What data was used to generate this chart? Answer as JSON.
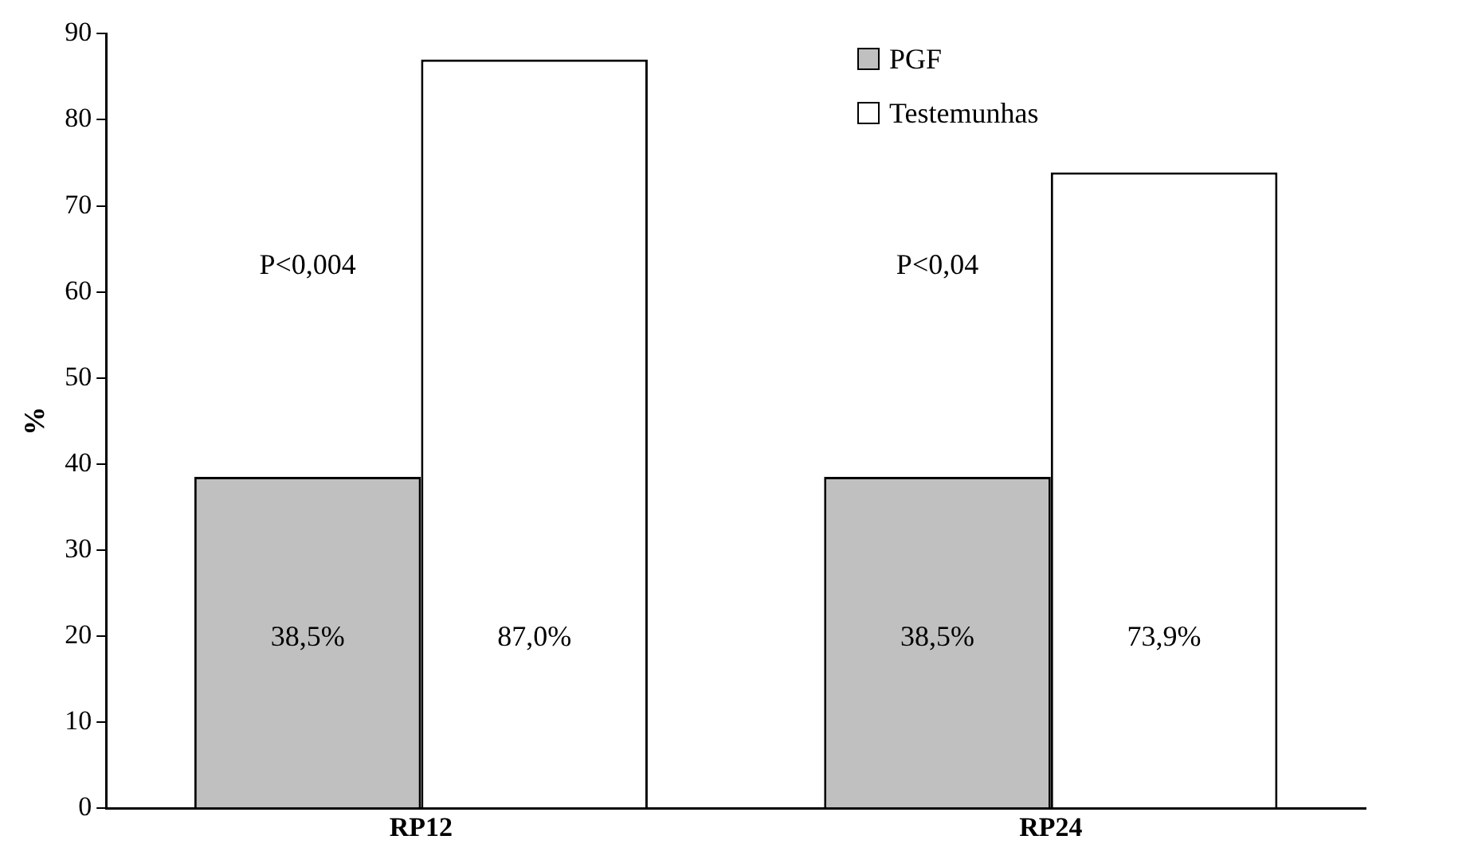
{
  "chart_data": {
    "type": "bar",
    "categories": [
      "RP12",
      "RP24"
    ],
    "series": [
      {
        "name": "PGF",
        "color": "#c0c0c0",
        "values": [
          38.5,
          38.5
        ],
        "value_labels": [
          "38,5%",
          "38,5%"
        ]
      },
      {
        "name": "Testemunhas",
        "color": "#ffffff",
        "values": [
          87.0,
          73.9
        ],
        "value_labels": [
          "87,0%",
          "73,9%"
        ]
      }
    ],
    "ylabel": "%",
    "ylim": [
      0,
      90
    ],
    "yticks": [
      0,
      10,
      20,
      30,
      40,
      50,
      60,
      70,
      80,
      90
    ],
    "annotations": [
      "P<0,004",
      "P<0,04"
    ],
    "legend": "top right",
    "grid": false
  }
}
